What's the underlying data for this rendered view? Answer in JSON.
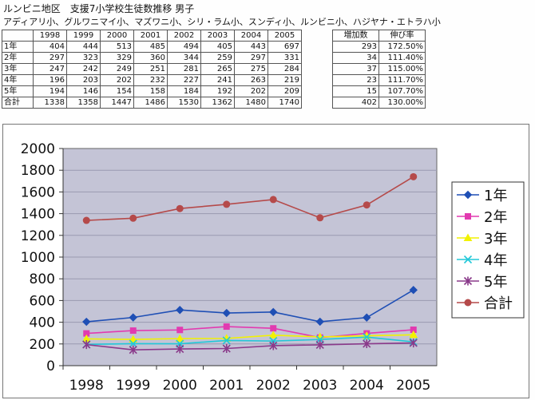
{
  "header": {
    "title": "ルンビニ地区　支援7小学校生徒数推移 男子",
    "subtitle": "アディアリ小、グルワニマイ小、マズワニ小、シリ・ラム小、スンディ小、ルンビニ小、ハジヤナ・エトラハ小"
  },
  "table": {
    "years": [
      "1998",
      "1999",
      "2000",
      "2001",
      "2002",
      "2003",
      "2004",
      "2005"
    ],
    "increase_header": "増加数",
    "rate_header": "伸び率",
    "rows": [
      {
        "label": "1年",
        "values": [
          "404",
          "444",
          "513",
          "485",
          "494",
          "405",
          "443",
          "697"
        ],
        "increase": "293",
        "rate": "172.50%"
      },
      {
        "label": "2年",
        "values": [
          "297",
          "323",
          "329",
          "360",
          "344",
          "259",
          "297",
          "331"
        ],
        "increase": "34",
        "rate": "111.40%"
      },
      {
        "label": "3年",
        "values": [
          "247",
          "242",
          "249",
          "251",
          "281",
          "265",
          "275",
          "284"
        ],
        "increase": "37",
        "rate": "115.00%"
      },
      {
        "label": "4年",
        "values": [
          "196",
          "203",
          "202",
          "232",
          "227",
          "241",
          "263",
          "219"
        ],
        "increase": "23",
        "rate": "111.70%"
      },
      {
        "label": "5年",
        "values": [
          "194",
          "146",
          "154",
          "158",
          "184",
          "192",
          "202",
          "209"
        ],
        "increase": "15",
        "rate": "107.70%"
      },
      {
        "label": "合計",
        "values": [
          "1338",
          "1358",
          "1447",
          "1486",
          "1530",
          "1362",
          "1480",
          "1740"
        ],
        "increase": "402",
        "rate": "130.00%"
      }
    ]
  },
  "chart_data": {
    "type": "line",
    "categories": [
      "1998",
      "1999",
      "2000",
      "2001",
      "2002",
      "2003",
      "2004",
      "2005"
    ],
    "ylim": [
      0,
      2000
    ],
    "yticks": [
      0,
      200,
      400,
      600,
      800,
      1000,
      1200,
      1400,
      1600,
      1800,
      2000
    ],
    "legend_position": "right",
    "plot_background": "#c4c4d6",
    "series": [
      {
        "name": "1年",
        "color": "#1f4fb5",
        "marker": "diamond",
        "values": [
          404,
          444,
          513,
          485,
          494,
          405,
          443,
          697
        ]
      },
      {
        "name": "2年",
        "color": "#e23ab0",
        "marker": "square",
        "values": [
          297,
          323,
          329,
          360,
          344,
          259,
          297,
          331
        ]
      },
      {
        "name": "3年",
        "color": "#f2f200",
        "marker": "triangle",
        "values": [
          247,
          242,
          249,
          251,
          281,
          265,
          275,
          284
        ]
      },
      {
        "name": "4年",
        "color": "#22c8d8",
        "marker": "x",
        "values": [
          196,
          203,
          202,
          232,
          227,
          241,
          263,
          219
        ]
      },
      {
        "name": "5年",
        "color": "#8a3a8a",
        "marker": "star",
        "values": [
          194,
          146,
          154,
          158,
          184,
          192,
          202,
          209
        ]
      },
      {
        "name": "合計",
        "color": "#b54a4a",
        "marker": "circle",
        "values": [
          1338,
          1358,
          1447,
          1486,
          1530,
          1362,
          1480,
          1740
        ]
      }
    ]
  }
}
